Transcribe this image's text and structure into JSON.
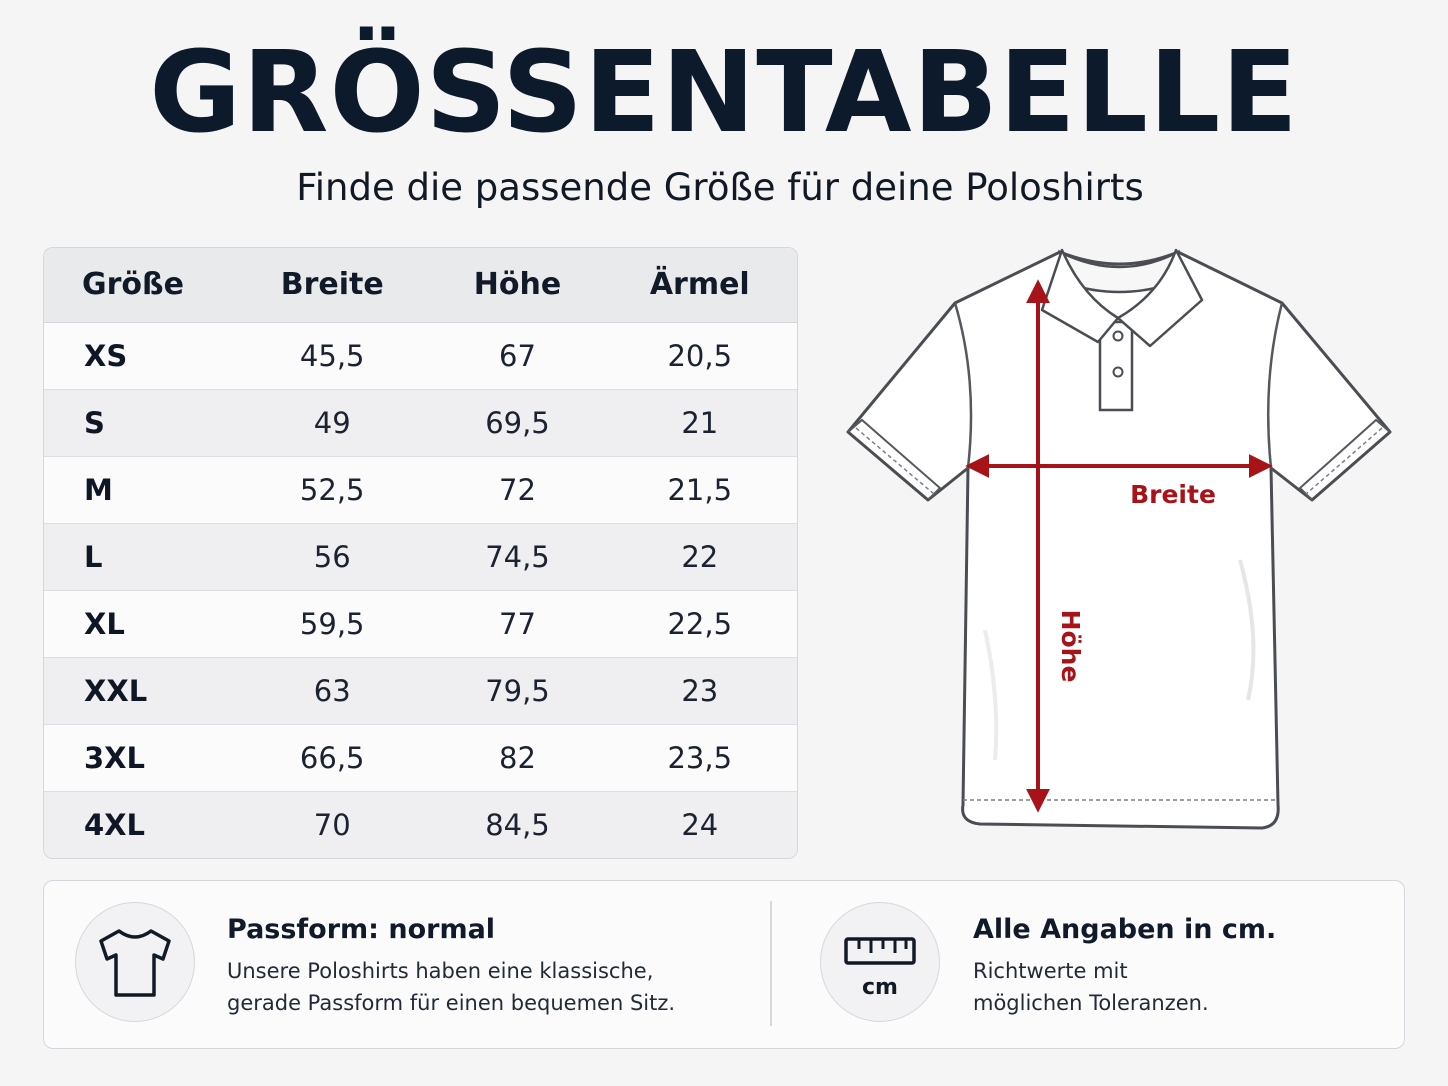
{
  "header": {
    "title": "GRÖSSENTABELLE",
    "subtitle": "Finde die passende Größe für deine Poloshirts"
  },
  "size_table": {
    "columns": [
      "Größe",
      "Breite",
      "Höhe",
      "Ärmel"
    ],
    "rows": [
      [
        "XS",
        "45,5",
        "67",
        "20,5"
      ],
      [
        "S",
        "49",
        "69,5",
        "21"
      ],
      [
        "M",
        "52,5",
        "72",
        "21,5"
      ],
      [
        "L",
        "56",
        "74,5",
        "22"
      ],
      [
        "XL",
        "59,5",
        "77",
        "22,5"
      ],
      [
        "XXL",
        "63",
        "79,5",
        "23"
      ],
      [
        "3XL",
        "66,5",
        "82",
        "23,5"
      ],
      [
        "4XL",
        "70",
        "84,5",
        "24"
      ]
    ]
  },
  "diagram": {
    "width_label": "Breite",
    "height_label": "Höhe",
    "measure_color": "#a6141a"
  },
  "info": {
    "fit": {
      "icon": "tshirt-icon",
      "title": "Passform: normal",
      "line1": "Unsere Poloshirts haben eine klassische,",
      "line2": "gerade Passform für einen bequemen Sitz."
    },
    "units": {
      "icon": "ruler-icon",
      "icon_label": "cm",
      "title": "Alle Angaben in cm.",
      "line1": "Richtwerte mit",
      "line2": "möglichen Toleranzen."
    }
  }
}
